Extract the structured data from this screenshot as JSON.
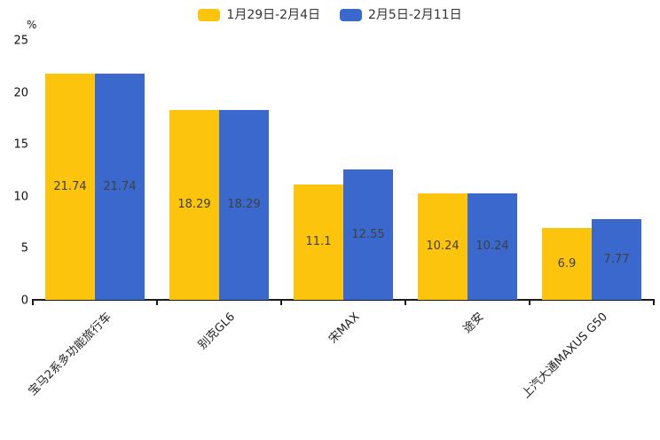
{
  "chart_data": {
    "type": "bar",
    "title": "",
    "categories": [
      "宝马2系多功能旅行车",
      "别克GL6",
      "宋MAX",
      "途安",
      "上汽大通MAXUS G50"
    ],
    "series": [
      {
        "name": "1月29日-2月4日",
        "color": "#FDC40D",
        "values": [
          21.74,
          18.29,
          11.1,
          10.24,
          6.9
        ]
      },
      {
        "name": "2月5日-2月11日",
        "color": "#3A68CC",
        "values": [
          21.74,
          18.29,
          12.55,
          10.24,
          7.77
        ]
      }
    ],
    "xlabel": "",
    "ylabel": "%",
    "ylim": [
      0,
      25
    ],
    "yticks": [
      0,
      5,
      10,
      15,
      20,
      25
    ],
    "grid": false,
    "legend_position": "top",
    "value_labels": "inside-center",
    "axis_color": "#1a1a1a",
    "label_color": "#404040"
  }
}
